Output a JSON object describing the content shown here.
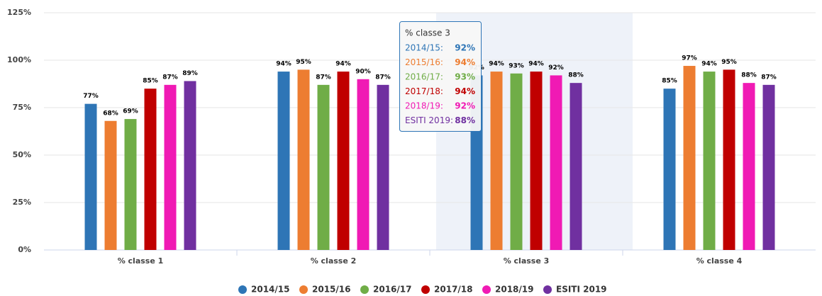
{
  "chart_data": {
    "type": "bar",
    "categories": [
      "% classe 1",
      "% classe 2",
      "% classe 3",
      "% classe 4"
    ],
    "series": [
      {
        "name": "2014/15",
        "color": "#2e75b6",
        "values": [
          77,
          94,
          92,
          85
        ],
        "value_labels": [
          "77%",
          "94%",
          "92%",
          "85%"
        ]
      },
      {
        "name": "2015/16",
        "color": "#ed7d31",
        "values": [
          68,
          95,
          94,
          97
        ],
        "value_labels": [
          "68%",
          "95%",
          "94%",
          "97%"
        ]
      },
      {
        "name": "2016/17",
        "color": "#70ad47",
        "values": [
          69,
          87,
          93,
          94
        ],
        "value_labels": [
          "69%",
          "87%",
          "93%",
          "94%"
        ]
      },
      {
        "name": "2017/18",
        "color": "#c00000",
        "values": [
          85,
          94,
          94,
          95
        ],
        "value_labels": [
          "85%",
          "94%",
          "94%",
          "95%"
        ]
      },
      {
        "name": "2018/19",
        "color": "#f01ab4",
        "values": [
          87,
          90,
          92,
          88
        ],
        "value_labels": [
          "87%",
          "90%",
          "92%",
          "88%"
        ]
      },
      {
        "name": "ESITI 2019",
        "color": "#7030a0",
        "values": [
          89,
          87,
          88,
          87
        ],
        "value_labels": [
          "89%",
          "87%",
          "88%",
          "87%"
        ]
      }
    ],
    "ylim": [
      0,
      125
    ],
    "yticks": [
      {
        "value": 0,
        "label": "0%"
      },
      {
        "value": 25,
        "label": "25%"
      },
      {
        "value": 50,
        "label": "50%"
      },
      {
        "value": 75,
        "label": "75%"
      },
      {
        "value": 100,
        "label": "100%"
      },
      {
        "value": 125,
        "label": "125%"
      }
    ],
    "grid": true,
    "legend": "bottom",
    "tooltip": {
      "title": "% classe 3",
      "rows": [
        {
          "label": "2014/15:",
          "value": "92%"
        },
        {
          "label": "2015/16:",
          "value": "94%"
        },
        {
          "label": "2016/17:",
          "value": "93%"
        },
        {
          "label": "2017/18:",
          "value": "94%"
        },
        {
          "label": "2018/19:",
          "value": "92%"
        },
        {
          "label": "ESITI 2019:",
          "value": "88%"
        }
      ]
    }
  }
}
